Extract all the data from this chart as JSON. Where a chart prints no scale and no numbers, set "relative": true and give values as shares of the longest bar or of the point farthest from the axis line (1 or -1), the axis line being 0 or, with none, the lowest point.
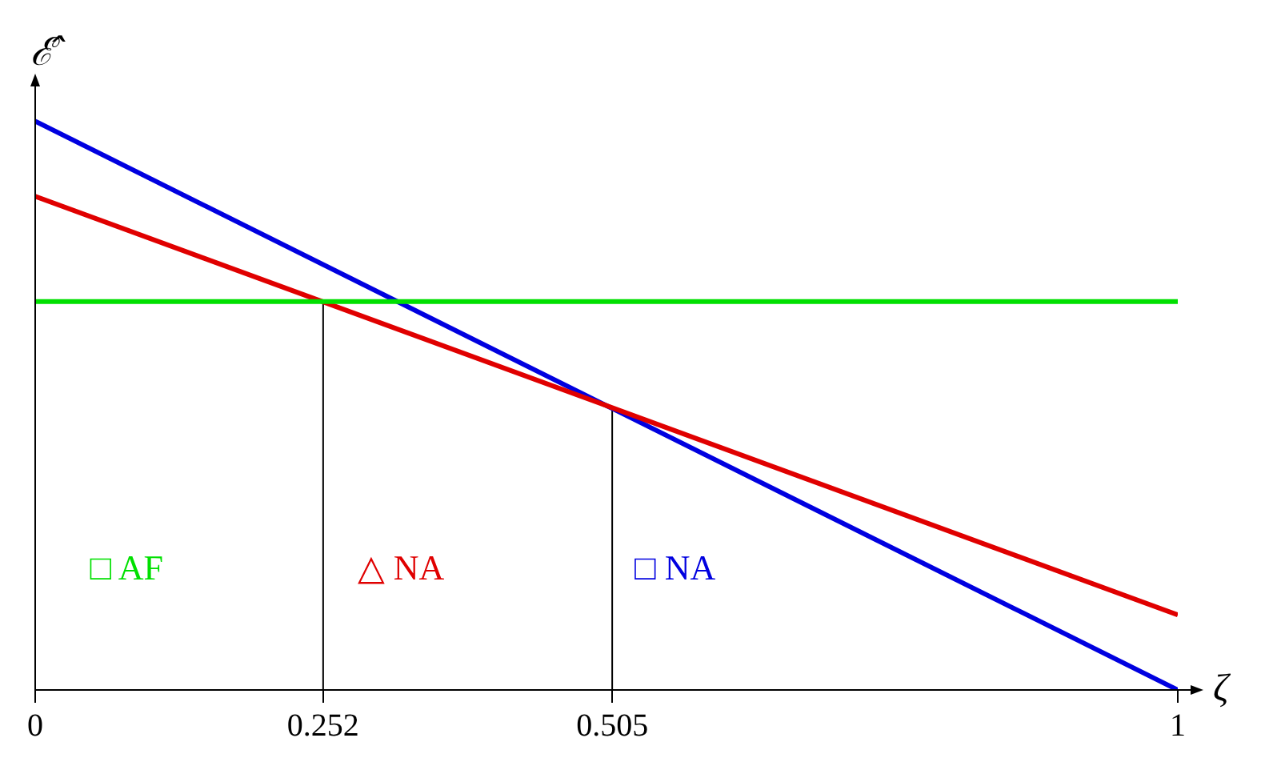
{
  "chart_data": {
    "type": "line",
    "relative": true,
    "xlabel": "ζ",
    "ylabel": "ℰ̂",
    "xlim": [
      0,
      1
    ],
    "xticks": [
      0,
      0.252,
      0.505,
      1
    ],
    "grid": false,
    "legend": false,
    "marker": "none",
    "line_style": "solid",
    "series": [
      {
        "color": "#00e000",
        "x": [
          0,
          1
        ],
        "values": [
          0.683,
          0.683
        ]
      },
      {
        "color": "#e00000",
        "x": [
          0,
          1
        ],
        "values": [
          0.868,
          0.132
        ]
      },
      {
        "color": "#0000e0",
        "x": [
          0,
          1
        ],
        "values": [
          1,
          0
        ]
      },
      {
        "color": "#000000",
        "x": [
          0.252,
          0.252
        ],
        "values": [
          0,
          0.683
        ]
      },
      {
        "color": "#000000",
        "x": [
          0.505,
          0.505
        ],
        "values": [
          0,
          0.495
        ]
      }
    ],
    "annotations": [
      "□ AF",
      "△ NA",
      "□ NA"
    ]
  }
}
